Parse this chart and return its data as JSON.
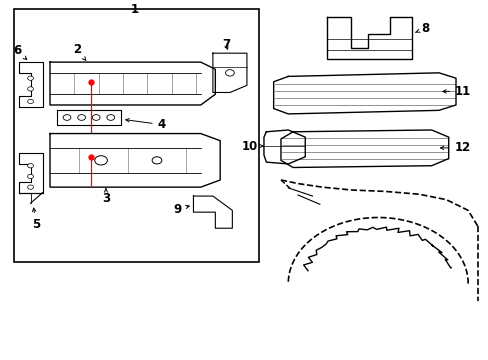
{
  "background_color": "#ffffff",
  "line_color": "#000000",
  "red_line_color": "#ff0000",
  "figsize": [
    4.89,
    3.6
  ],
  "dpi": 100
}
